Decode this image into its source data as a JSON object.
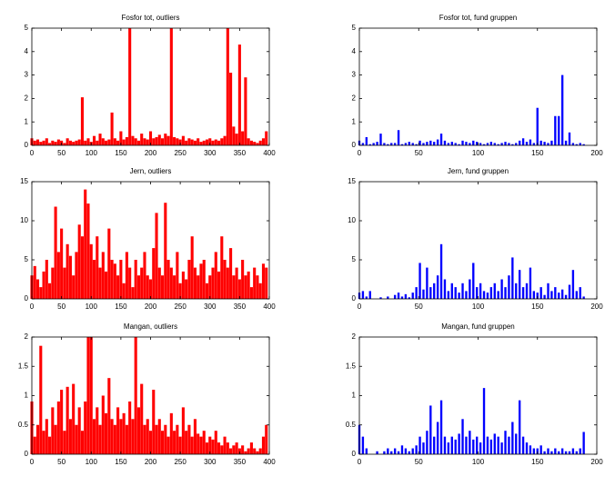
{
  "chart_data": [
    {
      "type": "bar",
      "title": "Fosfor tot, outliers",
      "color": "#ff0000",
      "xlim": [
        0,
        400
      ],
      "xticks": [
        0,
        50,
        100,
        150,
        200,
        250,
        300,
        350,
        400
      ],
      "ylim": [
        0,
        5
      ],
      "yticks": [
        0,
        1,
        2,
        3,
        4,
        5
      ],
      "x": [
        0,
        5,
        10,
        15,
        20,
        25,
        30,
        35,
        40,
        45,
        50,
        55,
        60,
        65,
        70,
        75,
        80,
        85,
        90,
        95,
        100,
        105,
        110,
        115,
        120,
        125,
        130,
        135,
        140,
        145,
        150,
        155,
        160,
        165,
        170,
        175,
        180,
        185,
        190,
        195,
        200,
        205,
        210,
        215,
        220,
        225,
        230,
        235,
        240,
        245,
        250,
        255,
        260,
        265,
        270,
        275,
        280,
        285,
        290,
        295,
        300,
        305,
        310,
        315,
        320,
        325,
        330,
        335,
        340,
        345,
        350,
        355,
        360,
        365,
        370,
        375,
        380,
        385,
        390,
        395
      ],
      "values": [
        0.3,
        0.2,
        0.25,
        0.15,
        0.2,
        0.3,
        0.1,
        0.2,
        0.15,
        0.25,
        0.2,
        0.1,
        0.3,
        0.2,
        0.15,
        0.2,
        0.25,
        2.05,
        0.2,
        0.3,
        0.15,
        0.4,
        0.2,
        0.5,
        0.3,
        0.2,
        0.25,
        1.4,
        0.3,
        0.2,
        0.6,
        0.25,
        0.35,
        5,
        0.4,
        0.3,
        0.2,
        0.5,
        0.3,
        0.25,
        0.6,
        0.3,
        0.35,
        0.45,
        0.3,
        0.5,
        0.4,
        5,
        0.35,
        0.3,
        0.25,
        0.4,
        0.2,
        0.3,
        0.25,
        0.2,
        0.3,
        0.15,
        0.2,
        0.25,
        0.3,
        0.2,
        0.25,
        0.2,
        0.3,
        0.4,
        5,
        3.1,
        0.8,
        0.5,
        4.3,
        0.6,
        2.9,
        0.3,
        0.2,
        0.15,
        0.1,
        0.2,
        0.3,
        0.6
      ]
    },
    {
      "type": "bar",
      "title": "Fosfor tot, fund gruppen",
      "color": "#0000ff",
      "xlim": [
        0,
        200
      ],
      "xticks": [
        0,
        50,
        100,
        150,
        200
      ],
      "ylim": [
        0,
        5
      ],
      "yticks": [
        0,
        1,
        2,
        3,
        4,
        5
      ],
      "x": [
        0,
        3,
        6,
        9,
        12,
        15,
        18,
        21,
        24,
        27,
        30,
        33,
        36,
        39,
        42,
        45,
        48,
        51,
        54,
        57,
        60,
        63,
        66,
        69,
        72,
        75,
        78,
        81,
        84,
        87,
        90,
        93,
        96,
        99,
        102,
        105,
        108,
        111,
        114,
        117,
        120,
        123,
        126,
        129,
        132,
        135,
        138,
        141,
        144,
        147,
        150,
        153,
        156,
        159,
        162,
        165,
        168,
        171,
        174,
        177,
        180,
        183,
        186,
        189
      ],
      "values": [
        0.2,
        0.1,
        0.35,
        0.05,
        0.1,
        0.15,
        0.5,
        0.1,
        0.05,
        0.1,
        0.1,
        0.65,
        0.05,
        0.1,
        0.15,
        0.1,
        0.05,
        0.2,
        0.1,
        0.15,
        0.2,
        0.15,
        0.25,
        0.5,
        0.2,
        0.1,
        0.15,
        0.1,
        0.05,
        0.2,
        0.15,
        0.1,
        0.2,
        0.15,
        0.1,
        0.05,
        0.1,
        0.15,
        0.1,
        0.05,
        0.1,
        0.15,
        0.1,
        0.05,
        0.1,
        0.2,
        0.3,
        0.15,
        0.25,
        0.1,
        1.6,
        0.2,
        0.15,
        0.1,
        0.2,
        1.25,
        1.25,
        3,
        0.2,
        0.55,
        0.1,
        0.05,
        0.1,
        0.05
      ]
    },
    {
      "type": "bar",
      "title": "Jern, outliers",
      "color": "#ff0000",
      "xlim": [
        0,
        400
      ],
      "xticks": [
        0,
        50,
        100,
        150,
        200,
        250,
        300,
        350,
        400
      ],
      "ylim": [
        0,
        15
      ],
      "yticks": [
        0,
        5,
        10,
        15
      ],
      "x": [
        0,
        5,
        10,
        15,
        20,
        25,
        30,
        35,
        40,
        45,
        50,
        55,
        60,
        65,
        70,
        75,
        80,
        85,
        90,
        95,
        100,
        105,
        110,
        115,
        120,
        125,
        130,
        135,
        140,
        145,
        150,
        155,
        160,
        165,
        170,
        175,
        180,
        185,
        190,
        195,
        200,
        205,
        210,
        215,
        220,
        225,
        230,
        235,
        240,
        245,
        250,
        255,
        260,
        265,
        270,
        275,
        280,
        285,
        290,
        295,
        300,
        305,
        310,
        315,
        320,
        325,
        330,
        335,
        340,
        345,
        350,
        355,
        360,
        365,
        370,
        375,
        380,
        385,
        390,
        395
      ],
      "values": [
        3,
        4.2,
        2.5,
        1.5,
        3.5,
        5,
        2,
        4,
        11.8,
        6,
        9,
        4,
        7,
        5.5,
        3,
        6,
        9.5,
        8,
        14,
        12.2,
        7,
        5,
        8,
        4,
        6,
        3.5,
        9,
        5,
        4.5,
        3,
        5,
        2,
        6,
        4,
        1.5,
        5,
        3,
        4,
        6,
        3,
        2.5,
        6.5,
        11,
        4,
        3,
        12.3,
        5,
        4,
        3,
        6,
        2,
        3.5,
        2.5,
        5,
        8,
        4,
        3,
        4.5,
        5,
        2,
        3,
        4,
        6,
        3.5,
        8,
        5,
        4,
        6.5,
        3,
        4,
        2.5,
        5,
        3,
        3.5,
        1.5,
        4,
        3,
        2,
        4.5,
        4
      ]
    },
    {
      "type": "bar",
      "title": "Jern, fund gruppen",
      "color": "#0000ff",
      "xlim": [
        0,
        200
      ],
      "xticks": [
        0,
        50,
        100,
        150,
        200
      ],
      "ylim": [
        0,
        15
      ],
      "yticks": [
        0,
        5,
        10,
        15
      ],
      "x": [
        0,
        3,
        6,
        9,
        12,
        15,
        18,
        21,
        24,
        27,
        30,
        33,
        36,
        39,
        42,
        45,
        48,
        51,
        54,
        57,
        60,
        63,
        66,
        69,
        72,
        75,
        78,
        81,
        84,
        87,
        90,
        93,
        96,
        99,
        102,
        105,
        108,
        111,
        114,
        117,
        120,
        123,
        126,
        129,
        132,
        135,
        138,
        141,
        144,
        147,
        150,
        153,
        156,
        159,
        162,
        165,
        168,
        171,
        174,
        177,
        180,
        183,
        186,
        189
      ],
      "values": [
        0.8,
        1,
        0.3,
        1,
        0,
        0,
        0.2,
        0,
        0.3,
        0,
        0.5,
        0.8,
        0.3,
        0.6,
        0.2,
        0.8,
        1.5,
        4.6,
        1.2,
        4,
        1.5,
        2,
        3,
        7,
        2.5,
        1,
        2,
        1.5,
        0.8,
        2,
        1,
        2.5,
        4.6,
        1.5,
        2,
        1,
        0.8,
        1.5,
        2,
        1,
        2.5,
        1.5,
        3,
        5.3,
        2,
        3.7,
        1.5,
        2,
        4,
        1,
        0.8,
        1.5,
        0.5,
        2,
        1,
        1.5,
        0.8,
        1.2,
        0.5,
        1.8,
        3.7,
        1,
        1.5,
        0.3
      ]
    },
    {
      "type": "bar",
      "title": "Mangan, outliers",
      "color": "#ff0000",
      "xlim": [
        0,
        400
      ],
      "xticks": [
        0,
        50,
        100,
        150,
        200,
        250,
        300,
        350,
        400
      ],
      "ylim": [
        0,
        2
      ],
      "yticks": [
        0,
        0.5,
        1,
        1.5,
        2
      ],
      "x": [
        0,
        5,
        10,
        15,
        20,
        25,
        30,
        35,
        40,
        45,
        50,
        55,
        60,
        65,
        70,
        75,
        80,
        85,
        90,
        95,
        100,
        105,
        110,
        115,
        120,
        125,
        130,
        135,
        140,
        145,
        150,
        155,
        160,
        165,
        170,
        175,
        180,
        185,
        190,
        195,
        200,
        205,
        210,
        215,
        220,
        225,
        230,
        235,
        240,
        245,
        250,
        255,
        260,
        265,
        270,
        275,
        280,
        285,
        290,
        295,
        300,
        305,
        310,
        315,
        320,
        325,
        330,
        335,
        340,
        345,
        350,
        355,
        360,
        365,
        370,
        375,
        380,
        385,
        390,
        395
      ],
      "values": [
        0.9,
        0.3,
        0.5,
        1.85,
        0.4,
        0.6,
        0.3,
        0.8,
        0.5,
        0.9,
        1.1,
        0.4,
        1.15,
        0.6,
        1.2,
        0.5,
        0.8,
        0.4,
        0.9,
        2,
        2,
        0.6,
        0.8,
        0.5,
        1,
        0.7,
        1.3,
        0.6,
        0.5,
        0.8,
        0.6,
        0.7,
        0.5,
        0.9,
        0.6,
        2,
        0.8,
        1.2,
        0.5,
        0.6,
        0.4,
        1.1,
        0.5,
        0.6,
        0.4,
        0.5,
        0.3,
        0.7,
        0.4,
        0.5,
        0.3,
        0.8,
        0.4,
        0.5,
        0.3,
        0.6,
        0.35,
        0.3,
        0.4,
        0.2,
        0.3,
        0.25,
        0.4,
        0.2,
        0.15,
        0.3,
        0.2,
        0.1,
        0.15,
        0.2,
        0.1,
        0.15,
        0.05,
        0.1,
        0.2,
        0.1,
        0.05,
        0.1,
        0.3,
        0.5
      ]
    },
    {
      "type": "bar",
      "title": "Mangan, fund gruppen",
      "color": "#0000ff",
      "xlim": [
        0,
        200
      ],
      "xticks": [
        0,
        50,
        100,
        150,
        200
      ],
      "ylim": [
        0,
        2
      ],
      "yticks": [
        0,
        0.5,
        1,
        1.5,
        2
      ],
      "x": [
        0,
        3,
        6,
        9,
        12,
        15,
        18,
        21,
        24,
        27,
        30,
        33,
        36,
        39,
        42,
        45,
        48,
        51,
        54,
        57,
        60,
        63,
        66,
        69,
        72,
        75,
        78,
        81,
        84,
        87,
        90,
        93,
        96,
        99,
        102,
        105,
        108,
        111,
        114,
        117,
        120,
        123,
        126,
        129,
        132,
        135,
        138,
        141,
        144,
        147,
        150,
        153,
        156,
        159,
        162,
        165,
        168,
        171,
        174,
        177,
        180,
        183,
        186,
        189
      ],
      "values": [
        0.5,
        0.3,
        0.1,
        0,
        0,
        0.05,
        0,
        0.05,
        0.1,
        0.05,
        0.1,
        0.05,
        0.15,
        0.1,
        0.05,
        0.1,
        0.15,
        0.3,
        0.2,
        0.4,
        0.83,
        0.3,
        0.55,
        0.92,
        0.3,
        0.2,
        0.3,
        0.25,
        0.35,
        0.6,
        0.3,
        0.4,
        0.25,
        0.3,
        0.2,
        1.13,
        0.3,
        0.25,
        0.35,
        0.3,
        0.2,
        0.4,
        0.3,
        0.55,
        0.35,
        0.92,
        0.3,
        0.2,
        0.15,
        0.1,
        0.1,
        0.15,
        0.05,
        0.1,
        0.05,
        0.1,
        0.05,
        0.1,
        0.05,
        0.05,
        0.1,
        0.05,
        0.1,
        0.38
      ]
    }
  ]
}
